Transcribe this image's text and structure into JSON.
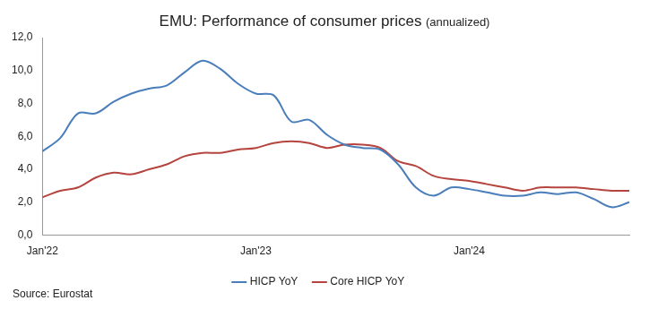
{
  "chart_data": {
    "type": "line",
    "title": "EMU: Performance of consumer prices",
    "subtitle": "(annualized)",
    "annotations": [
      "Source: Eurostat"
    ],
    "categories": [
      "Jan'22",
      null,
      null,
      null,
      null,
      null,
      null,
      null,
      null,
      null,
      null,
      null,
      "Jan'23",
      null,
      null,
      null,
      null,
      null,
      null,
      null,
      null,
      null,
      null,
      null,
      "Jan'24",
      null,
      null,
      null,
      null,
      null,
      null,
      null,
      null,
      null
    ],
    "series": [
      {
        "name": "HICP YoY",
        "color": "#4a7ebb",
        "values": [
          5.1,
          5.9,
          7.4,
          7.4,
          8.1,
          8.6,
          8.9,
          9.1,
          9.9,
          10.6,
          10.1,
          9.2,
          8.6,
          8.5,
          6.9,
          7.0,
          6.1,
          5.5,
          5.3,
          5.2,
          4.3,
          2.9,
          2.4,
          2.9,
          2.8,
          2.6,
          2.4,
          2.4,
          2.6,
          2.5,
          2.6,
          2.2,
          1.7,
          2.0
        ]
      },
      {
        "name": "Core HICP YoY",
        "color": "#b5443f",
        "values": [
          2.3,
          2.7,
          2.9,
          3.5,
          3.8,
          3.7,
          4.0,
          4.3,
          4.8,
          5.0,
          5.0,
          5.2,
          5.3,
          5.6,
          5.7,
          5.6,
          5.3,
          5.5,
          5.5,
          5.3,
          4.5,
          4.2,
          3.6,
          3.4,
          3.3,
          3.1,
          2.9,
          2.7,
          2.9,
          2.9,
          2.9,
          2.8,
          2.7,
          2.7
        ]
      }
    ],
    "ylim": [
      0,
      12
    ],
    "yticks": [
      {
        "value": 0,
        "label": "0,0"
      },
      {
        "value": 2,
        "label": "2,0"
      },
      {
        "value": 4,
        "label": "4,0"
      },
      {
        "value": 6,
        "label": "6,0"
      },
      {
        "value": 8,
        "label": "8,0"
      },
      {
        "value": 10,
        "label": "10,0"
      },
      {
        "value": 12,
        "label": "12,0"
      }
    ],
    "grid": false,
    "legend": "bottom"
  }
}
